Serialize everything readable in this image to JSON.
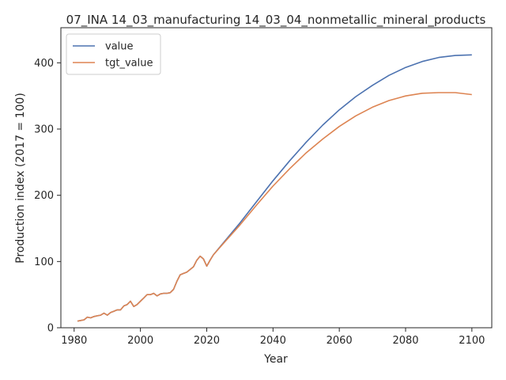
{
  "chart_data": {
    "type": "line",
    "title": "07_INA 14_03_manufacturing 14_03_04_nonmetallic_mineral_products",
    "xlabel": "Year",
    "ylabel": "Production index (2017 = 100)",
    "xlim": [
      1976,
      2106
    ],
    "ylim": [
      0,
      453
    ],
    "xticks": [
      1980,
      2000,
      2020,
      2040,
      2060,
      2080,
      2100
    ],
    "yticks": [
      0,
      100,
      200,
      300,
      400
    ],
    "grid": false,
    "legend": "top-left",
    "series": [
      {
        "name": "value",
        "color": "#4c72b0",
        "x": [
          1981,
          1982,
          1983,
          1984,
          1985,
          1986,
          1987,
          1988,
          1989,
          1990,
          1991,
          1992,
          1993,
          1994,
          1995,
          1996,
          1997,
          1998,
          1999,
          2000,
          2001,
          2002,
          2003,
          2004,
          2005,
          2006,
          2007,
          2008,
          2009,
          2010,
          2011,
          2012,
          2013,
          2014,
          2015,
          2016,
          2017,
          2018,
          2019,
          2020,
          2021,
          2022,
          2025,
          2030,
          2035,
          2040,
          2045,
          2050,
          2055,
          2060,
          2065,
          2070,
          2075,
          2080,
          2085,
          2090,
          2095,
          2100
        ],
        "y": [
          10,
          11,
          12,
          16,
          15,
          17,
          18,
          19,
          22,
          19,
          23,
          25,
          27,
          27,
          33,
          35,
          40,
          32,
          35,
          40,
          45,
          50,
          50,
          52,
          48,
          51,
          52,
          52,
          53,
          58,
          70,
          80,
          82,
          84,
          88,
          92,
          102,
          108,
          104,
          93,
          102,
          110,
          128,
          158,
          190,
          222,
          252,
          280,
          306,
          329,
          349,
          366,
          381,
          393,
          402,
          408,
          411,
          412
        ]
      },
      {
        "name": "tgt_value",
        "color": "#dd8452",
        "x": [
          1981,
          1982,
          1983,
          1984,
          1985,
          1986,
          1987,
          1988,
          1989,
          1990,
          1991,
          1992,
          1993,
          1994,
          1995,
          1996,
          1997,
          1998,
          1999,
          2000,
          2001,
          2002,
          2003,
          2004,
          2005,
          2006,
          2007,
          2008,
          2009,
          2010,
          2011,
          2012,
          2013,
          2014,
          2015,
          2016,
          2017,
          2018,
          2019,
          2020,
          2021,
          2022,
          2025,
          2030,
          2035,
          2040,
          2045,
          2050,
          2055,
          2060,
          2065,
          2070,
          2075,
          2080,
          2085,
          2090,
          2095,
          2100
        ],
        "y": [
          10,
          11,
          12,
          16,
          15,
          17,
          18,
          19,
          22,
          19,
          23,
          25,
          27,
          27,
          33,
          35,
          40,
          32,
          35,
          40,
          45,
          50,
          50,
          52,
          48,
          51,
          52,
          52,
          53,
          58,
          70,
          80,
          82,
          84,
          88,
          92,
          102,
          108,
          104,
          93,
          102,
          110,
          127,
          155,
          185,
          214,
          240,
          264,
          285,
          304,
          320,
          333,
          343,
          350,
          354,
          355,
          355,
          352
        ]
      }
    ]
  }
}
